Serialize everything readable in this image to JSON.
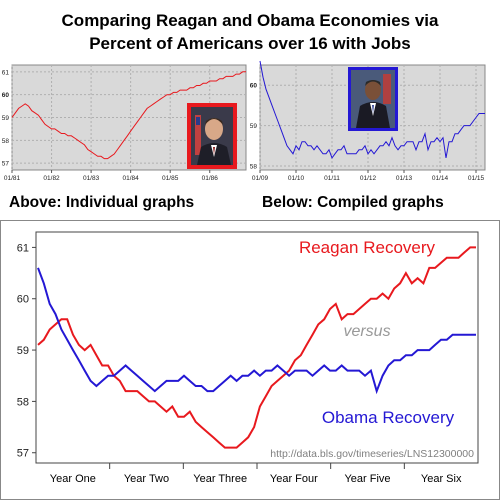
{
  "title_line1": "Comparing Reagan and Obama Economies via",
  "title_line2": "Percent of Americans over 16 with Jobs",
  "caption_left": "Above: Individual graphs",
  "caption_right": "Below: Compiled graphs",
  "colors": {
    "reagan": "#e8191e",
    "obama": "#2418d4",
    "plot_bg": "#d9d9d9",
    "versus": "#999999",
    "source": "#7f7f7f"
  },
  "chart_data": [
    {
      "id": "reagan_small",
      "type": "line",
      "ylim": [
        56.7,
        61.3
      ],
      "yticks": [
        57,
        58,
        59,
        60,
        61
      ],
      "bold_tick": 60,
      "xticks": [
        "01/81",
        "01/82",
        "01/83",
        "01/84",
        "01/85",
        "01/86"
      ],
      "x_months": 72,
      "series": [
        {
          "values": [
            59.0,
            59.2,
            59.4,
            59.5,
            59.6,
            59.5,
            59.3,
            59.2,
            59.1,
            58.9,
            58.7,
            58.6,
            58.5,
            58.5,
            58.4,
            58.3,
            58.3,
            58.2,
            58.2,
            58.1,
            58.0,
            57.9,
            57.8,
            57.6,
            57.5,
            57.4,
            57.3,
            57.3,
            57.2,
            57.2,
            57.3,
            57.4,
            57.6,
            57.8,
            58.0,
            58.2,
            58.4,
            58.6,
            58.8,
            59.0,
            59.2,
            59.4,
            59.5,
            59.6,
            59.7,
            59.8,
            59.9,
            60.0,
            60.0,
            60.1,
            60.1,
            60.2,
            60.2,
            60.2,
            60.3,
            60.3,
            60.4,
            60.4,
            60.5,
            60.5,
            60.6,
            60.6,
            60.6,
            60.7,
            60.7,
            60.8,
            60.8,
            60.8,
            60.9,
            60.9,
            61.0,
            61.0
          ]
        }
      ]
    },
    {
      "id": "obama_small",
      "type": "line",
      "ylim": [
        57.9,
        60.5
      ],
      "yticks": [
        58,
        59,
        60
      ],
      "bold_tick": 60,
      "xticks": [
        "01/09",
        "01/10",
        "01/11",
        "01/12",
        "01/13",
        "01/14",
        "01/15"
      ],
      "x_months": 76,
      "series": [
        {
          "values": [
            60.6,
            60.2,
            59.9,
            59.7,
            59.5,
            59.3,
            59.1,
            58.9,
            58.7,
            58.5,
            58.4,
            58.3,
            58.5,
            58.4,
            58.6,
            58.6,
            58.5,
            58.5,
            58.4,
            58.5,
            58.4,
            58.3,
            58.3,
            58.4,
            58.2,
            58.3,
            58.4,
            58.4,
            58.5,
            58.3,
            58.3,
            58.3,
            58.3,
            58.4,
            58.4,
            58.5,
            58.3,
            58.4,
            58.3,
            58.4,
            58.5,
            58.5,
            58.6,
            58.5,
            58.7,
            58.5,
            58.4,
            58.5,
            58.5,
            58.6,
            58.6,
            58.6,
            58.4,
            58.6,
            58.6,
            58.8,
            58.4,
            58.6,
            58.6,
            58.7,
            58.6,
            58.7,
            58.2,
            58.6,
            58.6,
            58.8,
            58.8,
            58.9,
            59.0,
            59.0,
            59.0,
            59.1,
            59.2,
            59.3,
            59.3,
            59.3
          ]
        }
      ]
    },
    {
      "id": "compiled",
      "type": "line",
      "ylim": [
        56.8,
        61.3
      ],
      "yticks": [
        57,
        58,
        59,
        60,
        61
      ],
      "xticks": [
        "Year One",
        "Year Two",
        "Year Three",
        "Year Four",
        "Year Five",
        "Year Six"
      ],
      "x_months": 76,
      "annotations": {
        "versus": "versus",
        "source": "http://data.bls.gov/timeseries/LNS12300000"
      },
      "series": [
        {
          "name": "Reagan Recovery",
          "values": [
            59.1,
            59.2,
            59.4,
            59.5,
            59.6,
            59.6,
            59.3,
            59.1,
            59.0,
            59.1,
            58.9,
            58.7,
            58.7,
            58.5,
            58.4,
            58.2,
            58.2,
            58.2,
            58.1,
            58.0,
            58.0,
            57.9,
            57.8,
            57.9,
            57.7,
            57.7,
            57.8,
            57.6,
            57.5,
            57.4,
            57.3,
            57.2,
            57.1,
            57.1,
            57.1,
            57.2,
            57.3,
            57.5,
            57.9,
            58.1,
            58.3,
            58.4,
            58.5,
            58.6,
            58.8,
            58.9,
            59.1,
            59.3,
            59.5,
            59.6,
            59.8,
            59.9,
            59.6,
            59.7,
            59.7,
            59.8,
            59.9,
            60.0,
            60.0,
            60.1,
            60.0,
            60.2,
            60.3,
            60.5,
            60.3,
            60.4,
            60.3,
            60.6,
            60.6,
            60.7,
            60.8,
            60.8,
            60.8,
            60.9,
            61.0,
            61.0
          ]
        },
        {
          "name": "Obama Recovery",
          "values": [
            60.6,
            60.3,
            59.9,
            59.7,
            59.4,
            59.2,
            59.0,
            58.8,
            58.6,
            58.4,
            58.3,
            58.4,
            58.5,
            58.5,
            58.6,
            58.7,
            58.6,
            58.5,
            58.4,
            58.3,
            58.2,
            58.3,
            58.4,
            58.4,
            58.4,
            58.5,
            58.4,
            58.3,
            58.3,
            58.2,
            58.2,
            58.3,
            58.4,
            58.5,
            58.4,
            58.5,
            58.5,
            58.6,
            58.5,
            58.6,
            58.6,
            58.7,
            58.6,
            58.5,
            58.6,
            58.6,
            58.6,
            58.5,
            58.6,
            58.7,
            58.6,
            58.6,
            58.7,
            58.6,
            58.6,
            58.6,
            58.5,
            58.6,
            58.2,
            58.5,
            58.7,
            58.8,
            58.8,
            58.9,
            58.9,
            59.0,
            59.0,
            59.0,
            59.1,
            59.2,
            59.2,
            59.3,
            59.3,
            59.3,
            59.3,
            59.3
          ]
        }
      ]
    }
  ]
}
